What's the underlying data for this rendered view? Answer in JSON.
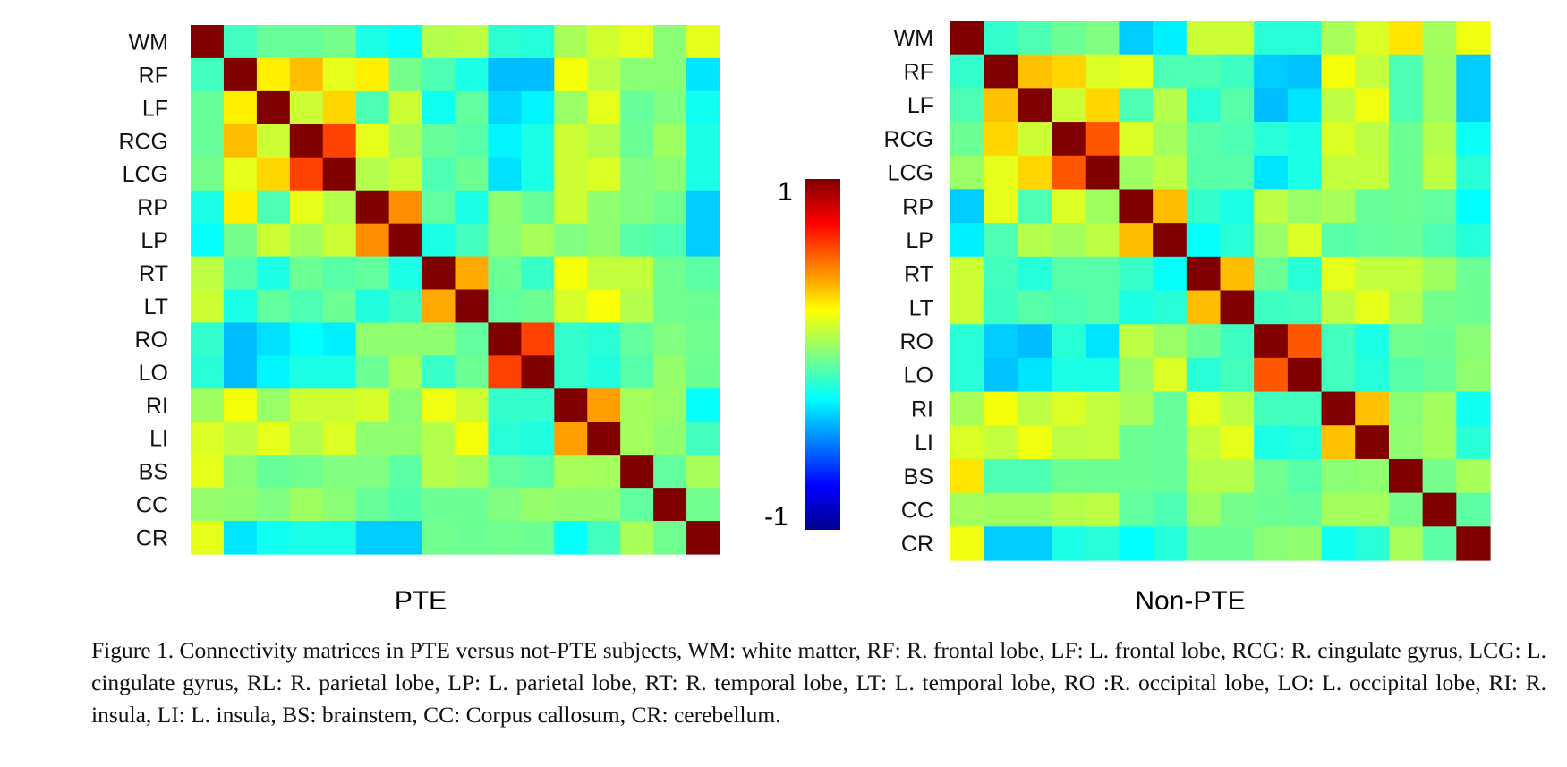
{
  "figure": {
    "caption": "Figure 1. Connectivity matrices in PTE versus not-PTE subjects, WM: white matter, RF: R. frontal lobe, LF: L. frontal lobe, RCG: R. cingulate gyrus, LCG: L. cingulate gyrus, RL: R. parietal lobe, LP: L. parietal lobe, RT: R. temporal lobe, LT: L. temporal lobe, RO :R. occipital lobe, LO: L. occipital lobe, RI: R. insula, LI: L. insula, BS: brainstem, CC: Corpus callosum, CR: cerebellum.",
    "colorbar": {
      "max_label": "1",
      "min_label": "-1",
      "colormap": "jet",
      "range": [
        -1,
        1
      ]
    }
  },
  "chart_data": [
    {
      "type": "heatmap",
      "title": "PTE",
      "colormap": "jet",
      "vmin": -1,
      "vmax": 1,
      "labels": [
        "WM",
        "RF",
        "LF",
        "RCG",
        "LCG",
        "RP",
        "LP",
        "RT",
        "LT",
        "RO",
        "LO",
        "RI",
        "LI",
        "BS",
        "CC",
        "CR"
      ],
      "values": [
        [
          1,
          -0.12,
          -0.05,
          -0.05,
          -0.02,
          -0.2,
          -0.24,
          0.1,
          0.12,
          -0.16,
          -0.18,
          0.08,
          0.16,
          0.2,
          0.02,
          0.2
        ],
        [
          -0.12,
          1,
          0.28,
          0.38,
          0.2,
          0.28,
          -0.02,
          -0.1,
          -0.2,
          -0.38,
          -0.38,
          0.23,
          0.12,
          0.02,
          0.02,
          -0.3
        ],
        [
          -0.05,
          0.28,
          1,
          0.15,
          0.33,
          -0.1,
          0.15,
          -0.22,
          -0.06,
          -0.33,
          -0.27,
          0.05,
          0.2,
          -0.05,
          0.0,
          -0.22
        ],
        [
          -0.05,
          0.38,
          0.15,
          1,
          0.62,
          0.2,
          0.08,
          -0.05,
          -0.08,
          -0.27,
          -0.2,
          0.15,
          0.1,
          -0.04,
          0.06,
          -0.2
        ],
        [
          -0.02,
          0.2,
          0.33,
          0.62,
          1,
          0.1,
          0.15,
          -0.1,
          -0.04,
          -0.31,
          -0.2,
          0.15,
          0.18,
          0.0,
          0.02,
          -0.2
        ],
        [
          -0.2,
          0.28,
          -0.1,
          0.2,
          0.1,
          1,
          0.47,
          -0.06,
          -0.2,
          0.03,
          -0.05,
          0.15,
          0.03,
          0.0,
          -0.03,
          -0.35
        ],
        [
          -0.24,
          -0.02,
          0.15,
          0.07,
          0.15,
          0.47,
          1,
          -0.2,
          -0.12,
          0.02,
          0.08,
          0.0,
          0.03,
          -0.08,
          -0.1,
          -0.35
        ],
        [
          0.12,
          -0.08,
          -0.2,
          -0.04,
          -0.08,
          -0.06,
          -0.2,
          1,
          0.42,
          -0.04,
          -0.14,
          0.23,
          0.13,
          0.13,
          -0.03,
          -0.07
        ],
        [
          0.15,
          -0.2,
          -0.06,
          -0.1,
          -0.04,
          -0.19,
          -0.13,
          0.42,
          1,
          -0.06,
          -0.04,
          0.17,
          0.24,
          0.1,
          -0.03,
          -0.04
        ],
        [
          -0.15,
          -0.38,
          -0.31,
          -0.25,
          -0.28,
          0.03,
          0.03,
          0.03,
          -0.06,
          1,
          0.62,
          -0.15,
          -0.17,
          -0.06,
          0.0,
          -0.03
        ],
        [
          -0.17,
          -0.38,
          -0.27,
          -0.2,
          -0.2,
          -0.04,
          0.08,
          -0.14,
          -0.04,
          0.62,
          1,
          -0.15,
          -0.19,
          -0.08,
          0.04,
          -0.04
        ],
        [
          0.06,
          0.23,
          0.05,
          0.15,
          0.15,
          0.17,
          0.02,
          0.22,
          0.15,
          -0.15,
          -0.15,
          1,
          0.44,
          0.07,
          0.05,
          -0.24
        ],
        [
          0.18,
          0.12,
          0.2,
          0.1,
          0.18,
          0.03,
          0.03,
          0.1,
          0.23,
          -0.17,
          -0.19,
          0.44,
          1,
          0.07,
          0.03,
          -0.12
        ],
        [
          0.2,
          0.02,
          -0.05,
          -0.03,
          0.0,
          0.0,
          -0.07,
          0.1,
          0.08,
          -0.06,
          -0.08,
          0.08,
          0.07,
          1,
          -0.06,
          0.08
        ],
        [
          0.04,
          0.03,
          0.0,
          0.06,
          0.02,
          -0.05,
          -0.09,
          -0.04,
          -0.04,
          0.0,
          0.04,
          0.03,
          0.03,
          -0.06,
          1,
          -0.03
        ],
        [
          0.2,
          -0.3,
          -0.22,
          -0.2,
          -0.2,
          -0.35,
          -0.35,
          -0.03,
          -0.04,
          -0.03,
          -0.04,
          -0.24,
          -0.12,
          0.08,
          -0.03,
          1
        ]
      ]
    },
    {
      "type": "heatmap",
      "title": "Non-PTE",
      "colormap": "jet",
      "vmin": -1,
      "vmax": 1,
      "labels": [
        "WM",
        "RF",
        "LF",
        "RCG",
        "LCG",
        "RP",
        "LP",
        "RT",
        "LT",
        "RO",
        "LO",
        "RI",
        "LI",
        "BS",
        "CC",
        "CR"
      ],
      "values": [
        [
          1,
          -0.15,
          -0.1,
          -0.04,
          0.0,
          -0.35,
          -0.28,
          0.15,
          0.15,
          -0.17,
          -0.17,
          0.08,
          0.18,
          0.3,
          0.07,
          0.22
        ],
        [
          -0.15,
          1,
          0.37,
          0.33,
          0.18,
          0.2,
          -0.1,
          -0.1,
          -0.13,
          -0.35,
          -0.37,
          0.23,
          0.13,
          -0.1,
          0.06,
          -0.35
        ],
        [
          -0.1,
          0.37,
          1,
          0.15,
          0.33,
          -0.1,
          0.1,
          -0.17,
          -0.08,
          -0.38,
          -0.3,
          0.12,
          0.22,
          -0.1,
          0.06,
          -0.35
        ],
        [
          -0.04,
          0.33,
          0.15,
          1,
          0.58,
          0.18,
          0.07,
          -0.08,
          -0.1,
          -0.17,
          -0.2,
          0.18,
          0.12,
          -0.04,
          0.1,
          -0.23
        ],
        [
          0.05,
          0.2,
          0.33,
          0.58,
          1,
          0.06,
          0.12,
          -0.08,
          -0.08,
          -0.3,
          -0.2,
          0.13,
          0.13,
          -0.04,
          0.12,
          -0.17
        ],
        [
          -0.35,
          0.2,
          -0.1,
          0.18,
          0.06,
          1,
          0.38,
          -0.15,
          -0.2,
          0.12,
          0.05,
          0.08,
          -0.05,
          -0.04,
          -0.06,
          -0.25
        ],
        [
          -0.28,
          -0.1,
          0.1,
          0.07,
          0.12,
          0.38,
          1,
          -0.24,
          -0.17,
          0.05,
          0.18,
          -0.08,
          -0.06,
          -0.05,
          -0.1,
          -0.18
        ],
        [
          0.15,
          -0.12,
          -0.18,
          -0.08,
          -0.08,
          -0.14,
          -0.24,
          1,
          0.38,
          -0.04,
          -0.17,
          0.2,
          0.13,
          0.13,
          0.06,
          -0.04
        ],
        [
          0.15,
          -0.13,
          -0.08,
          -0.1,
          -0.08,
          -0.2,
          -0.17,
          0.38,
          1,
          -0.13,
          -0.12,
          0.12,
          0.2,
          0.1,
          -0.02,
          -0.04
        ],
        [
          -0.17,
          -0.35,
          -0.38,
          -0.17,
          -0.3,
          0.12,
          0.05,
          -0.04,
          -0.13,
          1,
          0.58,
          -0.12,
          -0.2,
          -0.03,
          -0.04,
          0.02
        ],
        [
          -0.17,
          -0.37,
          -0.3,
          -0.2,
          -0.2,
          0.05,
          0.18,
          -0.17,
          -0.12,
          0.58,
          1,
          -0.12,
          -0.18,
          -0.08,
          -0.05,
          0.03
        ],
        [
          0.08,
          0.23,
          0.12,
          0.18,
          0.13,
          0.08,
          -0.05,
          0.2,
          0.12,
          -0.12,
          -0.12,
          1,
          0.37,
          0.02,
          0.07,
          -0.22
        ],
        [
          0.18,
          0.13,
          0.22,
          0.12,
          0.13,
          -0.04,
          -0.05,
          0.13,
          0.2,
          -0.2,
          -0.18,
          0.37,
          1,
          0.03,
          0.07,
          -0.17
        ],
        [
          0.3,
          -0.1,
          -0.1,
          -0.04,
          -0.04,
          -0.04,
          -0.05,
          0.1,
          0.1,
          -0.03,
          -0.08,
          0.02,
          0.03,
          1,
          -0.02,
          0.08
        ],
        [
          0.07,
          0.06,
          0.06,
          0.1,
          0.12,
          -0.06,
          -0.1,
          0.06,
          -0.02,
          -0.04,
          -0.05,
          0.07,
          0.07,
          -0.02,
          1,
          -0.07
        ],
        [
          0.22,
          -0.35,
          -0.35,
          -0.2,
          -0.17,
          -0.25,
          -0.18,
          -0.04,
          -0.04,
          0.02,
          0.03,
          -0.22,
          -0.17,
          0.08,
          -0.07,
          1
        ]
      ]
    }
  ]
}
